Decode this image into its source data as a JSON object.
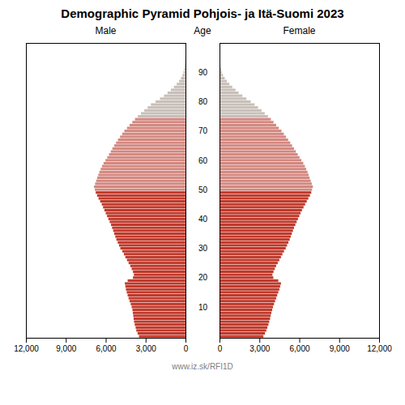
{
  "chart_data": {
    "type": "bar",
    "orientation": "horizontal",
    "title": "Demographic Pyramid Pohjois- ja Itä-Suomi 2023",
    "subtitle": "www.iz.sk/RFI1D",
    "ylabel": "Age",
    "categories": [
      0,
      1,
      2,
      3,
      4,
      5,
      6,
      7,
      8,
      9,
      10,
      11,
      12,
      13,
      14,
      15,
      16,
      17,
      18,
      19,
      20,
      21,
      22,
      23,
      24,
      25,
      26,
      27,
      28,
      29,
      30,
      31,
      32,
      33,
      34,
      35,
      36,
      37,
      38,
      39,
      40,
      41,
      42,
      43,
      44,
      45,
      46,
      47,
      48,
      49,
      50,
      51,
      52,
      53,
      54,
      55,
      56,
      57,
      58,
      59,
      60,
      61,
      62,
      63,
      64,
      65,
      66,
      67,
      68,
      69,
      70,
      71,
      72,
      73,
      74,
      75,
      76,
      77,
      78,
      79,
      80,
      81,
      82,
      83,
      84,
      85,
      86,
      87,
      88,
      89,
      90,
      91,
      92,
      93,
      94,
      95,
      96,
      97,
      98,
      99
    ],
    "colors": [
      "#c0392b",
      "#c0392b",
      "#c0392b",
      "#c0392b",
      "#c0392b",
      "#c0392b",
      "#c0392b",
      "#c0392b",
      "#c0392b",
      "#c0392b",
      "#c0392b",
      "#c0392b",
      "#c0392b",
      "#c0392b",
      "#c0392b",
      "#c0392b",
      "#c0392b",
      "#c0392b",
      "#c0392b",
      "#c0392b",
      "#c0392b",
      "#c0392b",
      "#c0392b",
      "#c0392b",
      "#c0392b",
      "#c0392b",
      "#c0392b",
      "#c0392b",
      "#c0392b",
      "#c0392b",
      "#c0392b",
      "#c0392b",
      "#c0392b",
      "#c0392b",
      "#c0392b",
      "#c0392b",
      "#c0392b",
      "#c0392b",
      "#c0392b",
      "#c0392b",
      "#c0392b",
      "#c0392b",
      "#c0392b",
      "#c0392b",
      "#c0392b",
      "#c0392b",
      "#c0392b",
      "#c0392b",
      "#c0392b",
      "#c0392b",
      "#d4877f",
      "#d4877f",
      "#d4877f",
      "#d4877f",
      "#d4877f",
      "#d4877f",
      "#d4877f",
      "#d4877f",
      "#d4877f",
      "#d4877f",
      "#d4877f",
      "#d4877f",
      "#d4877f",
      "#d4877f",
      "#d4877f",
      "#d4877f",
      "#d4877f",
      "#d4877f",
      "#d4877f",
      "#d4877f",
      "#d4877f",
      "#d4877f",
      "#d4877f",
      "#d4877f",
      "#d4877f",
      "#c8bfb8",
      "#c8bfb8",
      "#c8bfb8",
      "#c8bfb8",
      "#c8bfb8",
      "#c8bfb8",
      "#c8bfb8",
      "#c8bfb8",
      "#c8bfb8",
      "#c8bfb8",
      "#c8bfb8",
      "#c8bfb8",
      "#c8bfb8",
      "#c8bfb8",
      "#c8bfb8",
      "#c8bfb8",
      "#c8bfb8",
      "#c8bfb8",
      "#c8bfb8",
      "#c8bfb8",
      "#c8bfb8",
      "#c8bfb8",
      "#c8bfb8",
      "#c8bfb8",
      "#c8bfb8"
    ],
    "series": [
      {
        "name": "Male",
        "values": [
          3500,
          3600,
          3700,
          3750,
          3820,
          3870,
          3900,
          3930,
          3960,
          3990,
          4050,
          4120,
          4200,
          4280,
          4350,
          4420,
          4480,
          4520,
          4560,
          4350,
          3950,
          3880,
          3950,
          4050,
          4150,
          4280,
          4400,
          4520,
          4630,
          4750,
          4900,
          5000,
          5100,
          5200,
          5280,
          5360,
          5440,
          5520,
          5600,
          5700,
          5800,
          5900,
          6000,
          6100,
          6200,
          6300,
          6420,
          6540,
          6650,
          6750,
          6820,
          6880,
          6800,
          6720,
          6640,
          6560,
          6480,
          6380,
          6280,
          6160,
          6020,
          5880,
          5750,
          5620,
          5500,
          5360,
          5220,
          5080,
          4920,
          4760,
          4600,
          4400,
          4200,
          4000,
          3800,
          3580,
          3350,
          3100,
          2850,
          2600,
          2250,
          1920,
          1620,
          1350,
          1100,
          870,
          660,
          480,
          340,
          230,
          150,
          100,
          65,
          40,
          24,
          14,
          8,
          4,
          2,
          1
        ]
      },
      {
        "name": "Female",
        "values": [
          3300,
          3420,
          3520,
          3600,
          3680,
          3740,
          3800,
          3850,
          3900,
          3960,
          4020,
          4100,
          4180,
          4260,
          4340,
          4420,
          4500,
          4560,
          4620,
          4420,
          4050,
          3980,
          4060,
          4160,
          4260,
          4380,
          4500,
          4620,
          4730,
          4850,
          4980,
          5080,
          5180,
          5280,
          5360,
          5440,
          5520,
          5600,
          5700,
          5800,
          5900,
          6000,
          6100,
          6200,
          6320,
          6440,
          6560,
          6680,
          6800,
          6900,
          6960,
          7020,
          6940,
          6860,
          6780,
          6700,
          6620,
          6520,
          6420,
          6300,
          6160,
          6020,
          5880,
          5740,
          5600,
          5460,
          5320,
          5160,
          5000,
          4840,
          4660,
          4460,
          4260,
          4060,
          3860,
          3640,
          3400,
          3160,
          2900,
          2640,
          2350,
          2020,
          1720,
          1440,
          1200,
          960,
          740,
          550,
          390,
          265,
          175,
          115,
          75,
          48,
          30,
          18,
          10,
          5,
          3,
          1
        ]
      }
    ],
    "xlim": [
      0,
      12000
    ],
    "xticks": [
      0,
      3000,
      6000,
      9000,
      12000
    ],
    "ylim": [
      -0.5,
      100
    ],
    "yticks": [
      10,
      20,
      30,
      40,
      50,
      60,
      70,
      80,
      90
    ]
  }
}
